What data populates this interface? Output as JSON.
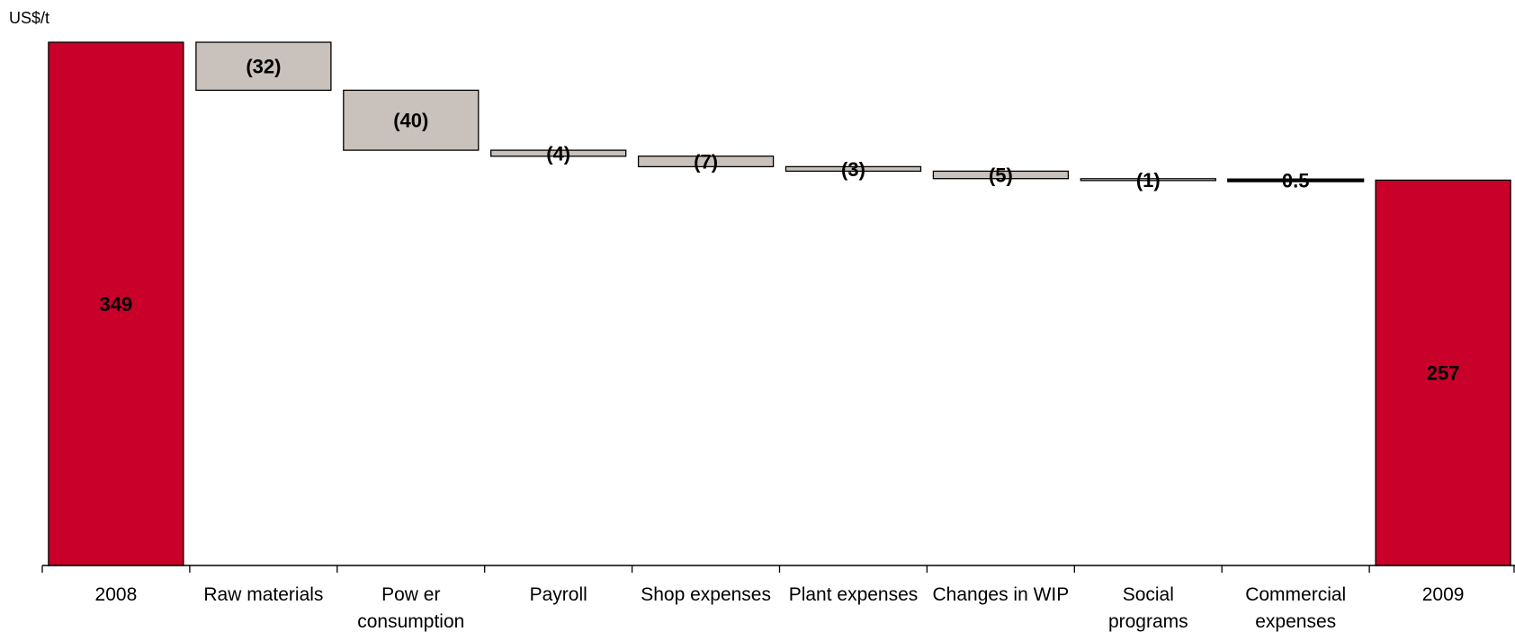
{
  "chart_data": {
    "type": "waterfall",
    "unit_label": "US$/t",
    "categories": [
      "2008",
      "Raw  materials",
      "Pow er consumption",
      "Payroll",
      "Shop expenses",
      "Plant expenses",
      "Changes in WIP",
      "Social programs",
      "Commercial expenses",
      "2009"
    ],
    "category_lines": [
      [
        "2008"
      ],
      [
        "Raw  materials"
      ],
      [
        "Pow er",
        "consumption"
      ],
      [
        "Payroll"
      ],
      [
        "Shop expenses"
      ],
      [
        "Plant expenses"
      ],
      [
        "Changes in WIP"
      ],
      [
        "Social",
        "programs"
      ],
      [
        "Commercial",
        "expenses"
      ],
      [
        "2009"
      ]
    ],
    "values": [
      349,
      -32,
      -40,
      -4,
      -7,
      -3,
      -5,
      -1,
      0.5,
      257
    ],
    "kinds": [
      "total",
      "delta",
      "delta",
      "delta",
      "delta",
      "delta",
      "delta",
      "delta",
      "delta",
      "total"
    ],
    "data_labels": [
      "349",
      "(32)",
      "(40)",
      "(4)",
      "(7)",
      "(3)",
      "(5)",
      "(1)",
      "0.5",
      "257"
    ],
    "ylim": [
      0,
      349
    ],
    "grid": false,
    "colors": {
      "total": "#c8002a",
      "delta": "#c9c2bc",
      "small_delta": "#f2efeb",
      "stroke": "#000000",
      "axis": "#000000"
    }
  }
}
